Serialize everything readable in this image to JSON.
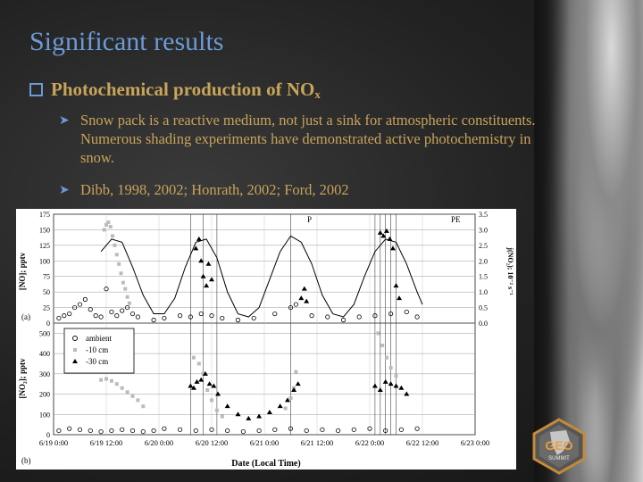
{
  "slide": {
    "title": "Significant results",
    "heading_main": "Photochemical production of NO",
    "heading_sub": "x",
    "bullets": [
      "Snow pack is a reactive medium, not just a sink for atmospheric constituents. Numerous shading experiments have demonstrated active photochemistry in snow.",
      "Dibb, 1998, 2002; Honrath, 2002; Ford, 2002"
    ]
  },
  "logo": {
    "line1": "GEO",
    "line2": "SUMMIT"
  },
  "chart_data": [
    {
      "type": "scatter",
      "panel_label": "(a)",
      "ylabel": "[NO]; pptv",
      "ylabel2": "j(NO₂); 10⁻² s⁻¹",
      "ylim": [
        0,
        175
      ],
      "yticks": [
        "0",
        "25",
        "50",
        "75",
        "100",
        "125",
        "150",
        "175"
      ],
      "y2lim": [
        0,
        3.5
      ],
      "y2ticks": [
        "0.0",
        "0.5",
        "1.0",
        "1.5",
        "2.0",
        "2.5",
        "3.0",
        "3.5"
      ],
      "annotations": [
        "P",
        "PE"
      ],
      "series_line_jno2": [
        [
          0.45,
          2.3
        ],
        [
          0.55,
          2.7
        ],
        [
          0.65,
          2.6
        ],
        [
          0.75,
          1.8
        ],
        [
          0.85,
          0.9
        ],
        [
          0.95,
          0.3
        ],
        [
          1.05,
          0.3
        ],
        [
          1.15,
          0.8
        ],
        [
          1.25,
          1.8
        ],
        [
          1.35,
          2.6
        ],
        [
          1.45,
          2.7
        ],
        [
          1.55,
          2.1
        ],
        [
          1.65,
          1.0
        ],
        [
          1.75,
          0.3
        ],
        [
          1.85,
          0.2
        ],
        [
          1.95,
          0.5
        ],
        [
          2.05,
          1.4
        ],
        [
          2.15,
          2.3
        ],
        [
          2.25,
          2.8
        ],
        [
          2.35,
          2.6
        ],
        [
          2.45,
          1.9
        ],
        [
          2.55,
          0.9
        ],
        [
          2.65,
          0.3
        ],
        [
          2.75,
          0.2
        ],
        [
          2.85,
          0.6
        ],
        [
          2.95,
          1.5
        ],
        [
          3.05,
          2.3
        ],
        [
          3.15,
          2.7
        ],
        [
          3.25,
          2.6
        ],
        [
          3.35,
          1.9
        ],
        [
          3.45,
          1.0
        ],
        [
          3.5,
          0.6
        ]
      ],
      "series_10cm": [
        [
          0.48,
          150
        ],
        [
          0.5,
          158
        ],
        [
          0.52,
          162
        ],
        [
          0.54,
          155
        ],
        [
          0.56,
          140
        ],
        [
          0.58,
          125
        ],
        [
          0.6,
          110
        ],
        [
          0.62,
          95
        ],
        [
          0.64,
          80
        ],
        [
          0.66,
          65
        ],
        [
          0.68,
          55
        ],
        [
          0.7,
          42
        ],
        [
          0.72,
          32
        ]
      ],
      "series_30cm": [
        [
          1.35,
          120
        ],
        [
          1.38,
          135
        ],
        [
          1.4,
          100
        ],
        [
          1.42,
          75
        ],
        [
          1.45,
          60
        ],
        [
          1.47,
          95
        ],
        [
          1.5,
          70
        ],
        [
          2.35,
          40
        ],
        [
          2.38,
          55
        ],
        [
          2.4,
          35
        ],
        [
          3.1,
          145
        ],
        [
          3.13,
          140
        ],
        [
          3.16,
          148
        ],
        [
          3.19,
          135
        ],
        [
          3.22,
          120
        ],
        [
          3.25,
          60
        ],
        [
          3.28,
          40
        ]
      ],
      "series_ambient": [
        [
          0.05,
          8
        ],
        [
          0.1,
          12
        ],
        [
          0.15,
          15
        ],
        [
          0.2,
          25
        ],
        [
          0.25,
          30
        ],
        [
          0.3,
          38
        ],
        [
          0.35,
          22
        ],
        [
          0.4,
          12
        ],
        [
          0.45,
          10
        ],
        [
          0.5,
          55
        ],
        [
          0.55,
          18
        ],
        [
          0.6,
          12
        ],
        [
          0.65,
          20
        ],
        [
          0.7,
          25
        ],
        [
          0.75,
          15
        ],
        [
          0.8,
          10
        ],
        [
          0.95,
          5
        ],
        [
          1.05,
          8
        ],
        [
          1.2,
          12
        ],
        [
          1.3,
          10
        ],
        [
          1.4,
          15
        ],
        [
          1.5,
          12
        ],
        [
          1.6,
          8
        ],
        [
          1.75,
          5
        ],
        [
          1.9,
          8
        ],
        [
          2.1,
          15
        ],
        [
          2.25,
          25
        ],
        [
          2.3,
          30
        ],
        [
          2.45,
          12
        ],
        [
          2.6,
          10
        ],
        [
          2.75,
          5
        ],
        [
          2.9,
          10
        ],
        [
          3.05,
          12
        ],
        [
          3.2,
          15
        ],
        [
          3.35,
          18
        ],
        [
          3.45,
          10
        ]
      ]
    },
    {
      "type": "scatter",
      "panel_label": "(b)",
      "ylabel": "[NO₂]; pptv",
      "xlabel": "Date (Local Time)",
      "ylim": [
        0,
        550
      ],
      "yticks": [
        "0",
        "100",
        "200",
        "300",
        "400",
        "500"
      ],
      "categories": [
        "6/19 0:00",
        "6/19 12:00",
        "6/20 0:00",
        "6/20 12:00",
        "6/21 0:00",
        "6/21 12:00",
        "6/22 0:00",
        "6/22 12:00",
        "6/23 0:00"
      ],
      "legend": [
        "ambient",
        "-10 cm",
        "-30 cm"
      ],
      "series_ambient": [
        [
          0.05,
          20
        ],
        [
          0.15,
          30
        ],
        [
          0.25,
          25
        ],
        [
          0.35,
          20
        ],
        [
          0.45,
          15
        ],
        [
          0.55,
          20
        ],
        [
          0.65,
          25
        ],
        [
          0.75,
          20
        ],
        [
          0.85,
          15
        ],
        [
          0.95,
          20
        ],
        [
          1.05,
          30
        ],
        [
          1.2,
          25
        ],
        [
          1.35,
          20
        ],
        [
          1.5,
          25
        ],
        [
          1.65,
          20
        ],
        [
          1.8,
          15
        ],
        [
          1.95,
          20
        ],
        [
          2.1,
          25
        ],
        [
          2.25,
          30
        ],
        [
          2.4,
          20
        ],
        [
          2.55,
          25
        ],
        [
          2.7,
          20
        ],
        [
          2.85,
          25
        ],
        [
          3.0,
          30
        ],
        [
          3.15,
          20
        ],
        [
          3.3,
          25
        ],
        [
          3.45,
          30
        ]
      ],
      "series_10cm": [
        [
          0.45,
          270
        ],
        [
          0.5,
          275
        ],
        [
          0.55,
          265
        ],
        [
          0.6,
          250
        ],
        [
          0.65,
          230
        ],
        [
          0.7,
          210
        ],
        [
          0.75,
          190
        ],
        [
          0.8,
          170
        ],
        [
          0.85,
          140
        ],
        [
          1.33,
          380
        ],
        [
          1.38,
          350
        ],
        [
          1.42,
          300
        ],
        [
          1.46,
          220
        ],
        [
          1.5,
          170
        ],
        [
          1.55,
          120
        ],
        [
          1.6,
          90
        ],
        [
          2.2,
          130
        ],
        [
          2.25,
          180
        ],
        [
          2.28,
          230
        ],
        [
          2.3,
          310
        ],
        [
          3.08,
          500
        ],
        [
          3.12,
          440
        ],
        [
          3.16,
          380
        ],
        [
          3.2,
          330
        ],
        [
          3.25,
          290
        ]
      ],
      "series_30cm": [
        [
          1.3,
          240
        ],
        [
          1.33,
          230
        ],
        [
          1.36,
          260
        ],
        [
          1.4,
          270
        ],
        [
          1.44,
          300
        ],
        [
          1.48,
          250
        ],
        [
          1.52,
          240
        ],
        [
          1.56,
          200
        ],
        [
          1.65,
          140
        ],
        [
          1.75,
          100
        ],
        [
          1.85,
          80
        ],
        [
          1.95,
          90
        ],
        [
          2.05,
          110
        ],
        [
          2.15,
          140
        ],
        [
          2.22,
          170
        ],
        [
          2.28,
          220
        ],
        [
          2.32,
          250
        ],
        [
          3.05,
          240
        ],
        [
          3.1,
          220
        ],
        [
          3.15,
          260
        ],
        [
          3.2,
          250
        ],
        [
          3.25,
          240
        ],
        [
          3.3,
          230
        ],
        [
          3.35,
          200
        ]
      ]
    }
  ]
}
